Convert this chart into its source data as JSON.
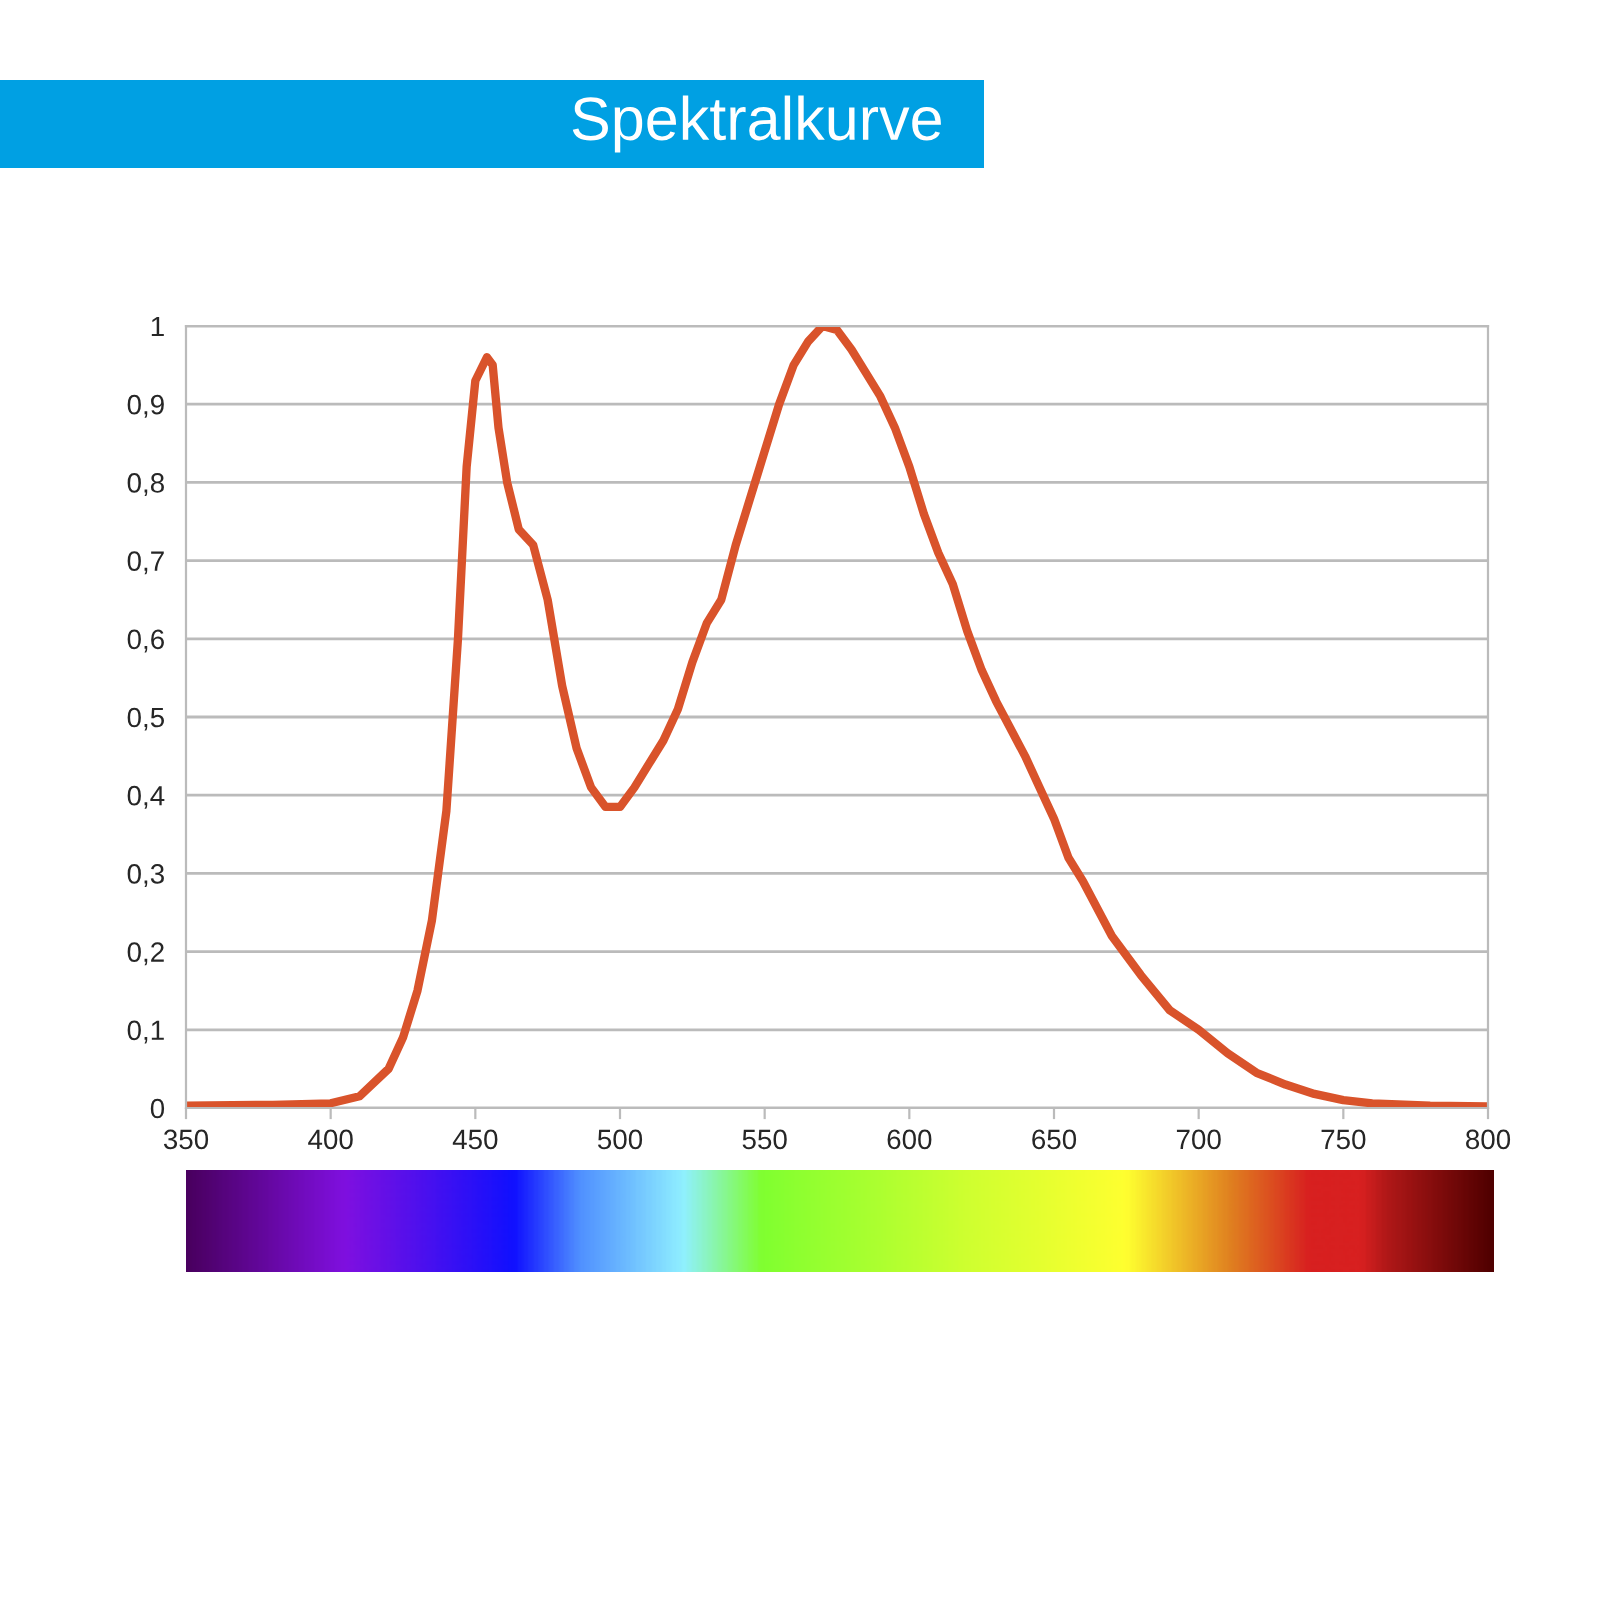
{
  "chart_data": {
    "type": "line",
    "title": "Spektralkurve",
    "series": [
      {
        "color": "#d9532b",
        "x": [
          350,
          380,
          400,
          410,
          420,
          425,
          430,
          435,
          440,
          444,
          447,
          450,
          454,
          456,
          458,
          461,
          465,
          470,
          475,
          480,
          485,
          490,
          495,
          500,
          505,
          510,
          515,
          520,
          525,
          530,
          535,
          540,
          545,
          550,
          555,
          560,
          565,
          570,
          575,
          580,
          585,
          590,
          595,
          600,
          605,
          610,
          615,
          620,
          625,
          630,
          640,
          645,
          650,
          655,
          660,
          670,
          680,
          690,
          700,
          710,
          720,
          730,
          740,
          750,
          760,
          780,
          800
        ],
        "values": [
          0.003,
          0.004,
          0.006,
          0.015,
          0.05,
          0.09,
          0.15,
          0.24,
          0.38,
          0.6,
          0.82,
          0.93,
          0.96,
          0.95,
          0.87,
          0.8,
          0.74,
          0.72,
          0.65,
          0.54,
          0.46,
          0.41,
          0.385,
          0.385,
          0.41,
          0.44,
          0.47,
          0.51,
          0.57,
          0.62,
          0.65,
          0.72,
          0.78,
          0.84,
          0.9,
          0.95,
          0.98,
          1.0,
          0.995,
          0.97,
          0.94,
          0.91,
          0.87,
          0.82,
          0.76,
          0.71,
          0.67,
          0.61,
          0.56,
          0.52,
          0.45,
          0.41,
          0.37,
          0.32,
          0.29,
          0.22,
          0.17,
          0.125,
          0.1,
          0.07,
          0.045,
          0.03,
          0.018,
          0.01,
          0.006,
          0.003,
          0.002
        ]
      }
    ],
    "xlim": [
      350,
      800
    ],
    "xticks": [
      350,
      400,
      450,
      500,
      550,
      600,
      650,
      700,
      750,
      800
    ],
    "ylim": [
      0,
      1
    ],
    "yticks": [
      0,
      {
        "value": 0.1,
        "label": "0,1"
      },
      {
        "value": 0.2,
        "label": "0,2"
      },
      {
        "value": 0.3,
        "label": "0,3"
      },
      {
        "value": 0.4,
        "label": "0,4"
      },
      {
        "value": 0.5,
        "label": "0,5"
      },
      {
        "value": 0.6,
        "label": "0,6"
      },
      {
        "value": 0.7,
        "label": "0,7"
      },
      {
        "value": 0.8,
        "label": "0,8"
      },
      {
        "value": 0.9,
        "label": "0,9"
      },
      1
    ],
    "grid": "y",
    "line_style": "solid",
    "marker": "none"
  }
}
